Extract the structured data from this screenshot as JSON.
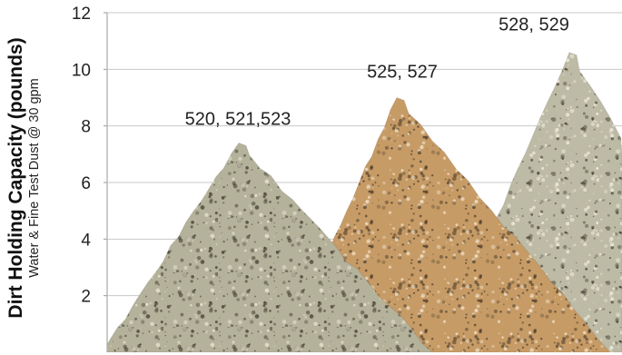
{
  "chart_data": {
    "type": "bar",
    "ylabel": "Dirt Holding Capacity (pounds)",
    "ysubtitle": "Water & Fine Test Dust @ 30 gpm",
    "ylim": [
      0,
      12
    ],
    "yticks": [
      2,
      4,
      6,
      8,
      10,
      12
    ],
    "grid": true,
    "categories": [
      "520, 521,523",
      "525, 527",
      "528, 529"
    ],
    "values": [
      7.4,
      9.0,
      10.6
    ],
    "colors": [
      "#b5b29b",
      "#c79b66",
      "#bdbaa5"
    ]
  }
}
